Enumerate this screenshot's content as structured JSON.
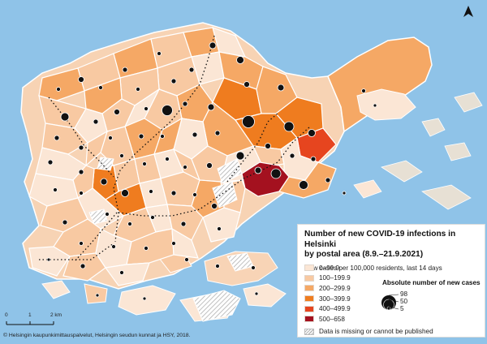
{
  "legend": {
    "title_line1": "Number of new COVID-19 infections in Helsinki",
    "title_line2": "by postal area (8.9.–21.9.2021)",
    "subtitle": "New cases per 100,000 residents, last 14 days",
    "classes": [
      {
        "label": "0–99.9",
        "color": "#fbe6d5"
      },
      {
        "label": "100–199.9",
        "color": "#f8c9a2"
      },
      {
        "label": "200–299.9",
        "color": "#f5a865"
      },
      {
        "label": "300–399.9",
        "color": "#ef7c1f"
      },
      {
        "label": "400–499.9",
        "color": "#e6451f"
      },
      {
        "label": "500–658",
        "color": "#a4111f"
      }
    ],
    "missing_label": "Data is missing or cannot be published",
    "absolute_title": "Absolute number of new cases",
    "absolute_values": [
      "98",
      "50",
      "5"
    ]
  },
  "scale": {
    "labels": [
      "0",
      "1",
      "2 km"
    ]
  },
  "copyright": "© Helsingin kaupunkimittauspalvelut, Helsingin seudun kunnat ja HSY, 2018.",
  "colors": {
    "sea": "#8fc3e8",
    "land_outline": "#ffffff",
    "dot": "#111111",
    "hatch": "#b5b5b5"
  },
  "icons": {
    "north_arrow": "north-arrow-icon"
  }
}
